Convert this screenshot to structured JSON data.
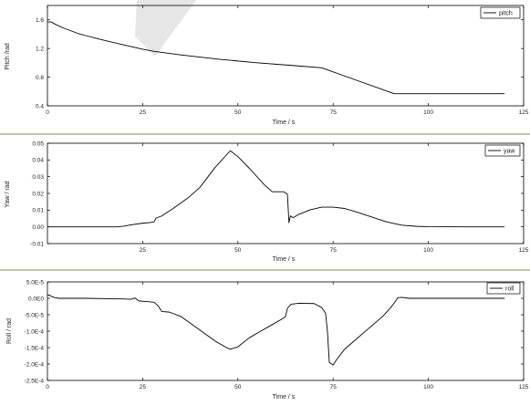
{
  "watermark": {
    "color": "#e6e6e6"
  },
  "chart_data": [
    {
      "type": "line",
      "xlabel": "Time / s",
      "ylabel": "Pitch /rad",
      "xlim": [
        0,
        125
      ],
      "ylim": [
        0.4,
        1.8
      ],
      "x_ticks": [
        0,
        25,
        50,
        75,
        100,
        125
      ],
      "x_tick_labels": [
        "0",
        "25",
        "50",
        "75",
        "100",
        "125"
      ],
      "y_ticks": [
        0.4,
        0.8,
        1.2,
        1.6
      ],
      "y_tick_labels": [
        "0.4",
        "0.8",
        "1.2",
        "1.6"
      ],
      "grid": false,
      "legend_position": "top-right",
      "series": [
        {
          "name": "pitch",
          "color": "#000000",
          "x": [
            0,
            1,
            2,
            4,
            6,
            8,
            10,
            13,
            16,
            20,
            25,
            28,
            35,
            45,
            55,
            65,
            72,
            91,
            92,
            120
          ],
          "y": [
            1.57,
            1.57,
            1.54,
            1.49,
            1.45,
            1.41,
            1.38,
            1.34,
            1.3,
            1.25,
            1.19,
            1.16,
            1.11,
            1.05,
            1.0,
            0.96,
            0.93,
            0.57,
            0.57,
            0.57
          ]
        }
      ]
    },
    {
      "type": "line",
      "xlabel": "Time / s",
      "ylabel": "Yaw / rad",
      "xlim": [
        0,
        125
      ],
      "ylim": [
        -0.01,
        0.05
      ],
      "x_ticks": [
        25,
        50,
        75,
        100,
        125
      ],
      "x_tick_labels": [
        "25",
        "50",
        "75",
        "100",
        "125"
      ],
      "y_ticks": [
        -0.01,
        0.0,
        0.01,
        0.02,
        0.03,
        0.04,
        0.05
      ],
      "y_tick_labels": [
        "-0.01",
        "0.00",
        "0.01",
        "0.02",
        "0.03",
        "0.04",
        "0.05"
      ],
      "grid": false,
      "legend_position": "top-right",
      "series": [
        {
          "name": "yaw",
          "color": "#000000",
          "x": [
            0,
            10,
            18,
            20,
            22,
            25,
            27,
            28,
            28.5,
            30,
            33,
            37,
            40,
            44,
            48,
            50,
            53,
            57,
            59,
            62,
            63,
            63.4,
            63.8,
            64.5,
            66,
            69,
            72,
            75,
            78,
            81,
            85,
            89,
            93,
            97,
            100,
            110,
            120
          ],
          "y": [
            0,
            0,
            0,
            0.0004,
            0.0012,
            0.0022,
            0.0026,
            0.003,
            0.0052,
            0.0065,
            0.011,
            0.0175,
            0.0235,
            0.0355,
            0.0455,
            0.042,
            0.035,
            0.025,
            0.021,
            0.021,
            0.0195,
            0.0025,
            0.0065,
            0.0055,
            0.0075,
            0.0102,
            0.0118,
            0.0118,
            0.011,
            0.009,
            0.006,
            0.003,
            0.001,
            0.0003,
            0.0001,
            0,
            0
          ]
        }
      ]
    },
    {
      "type": "line",
      "xlabel": "Time / s",
      "ylabel": "Roll / rad",
      "xlim": [
        0,
        125
      ],
      "ylim": [
        -0.00025,
        5e-05
      ],
      "x_ticks": [
        0,
        25,
        50,
        75,
        100,
        125
      ],
      "x_tick_labels": [
        "0",
        "25",
        "50",
        "75",
        "100",
        "125"
      ],
      "y_ticks": [
        -0.00025,
        -0.0002,
        -0.00015,
        -0.0001,
        -5e-05,
        0,
        5e-05
      ],
      "y_tick_labels": [
        "-2.5E-4",
        "-2.0E-4",
        "-1.5E-4",
        "-1.0E-4",
        "-5.0E-5",
        "0.0E0",
        "5.0E-5"
      ],
      "grid": false,
      "legend_position": "top-right",
      "series": [
        {
          "name": "roll",
          "color": "#000000",
          "x": [
            0,
            0.5,
            1,
            2,
            3,
            10,
            20,
            22,
            23,
            24,
            26,
            28,
            29,
            30,
            32,
            35,
            38,
            41,
            44,
            47,
            48,
            50,
            53,
            56,
            59,
            62,
            62.5,
            63,
            64,
            66,
            70,
            72,
            73,
            73.5,
            74,
            75,
            76,
            78,
            80,
            84,
            88,
            90,
            91,
            92,
            93,
            95,
            100,
            110,
            120
          ],
          "y": [
            1e-05,
            1e-05,
            6e-06,
            2e-06,
            0,
            0,
            -2e-06,
            -3e-06,
            1e-06,
            -8e-06,
            -1e-05,
            -1.2e-05,
            -2.2e-05,
            -4e-05,
            -4.2e-05,
            -5.5e-05,
            -8e-05,
            -0.000105,
            -0.00013,
            -0.00015,
            -0.000155,
            -0.000148,
            -0.00012,
            -0.0001,
            -8e-05,
            -6e-05,
            -5.5e-05,
            -3e-05,
            -1.8e-05,
            -1.5e-05,
            -1.6e-05,
            -2.8e-05,
            -4.5e-05,
            -0.0001,
            -0.000195,
            -0.000203,
            -0.000185,
            -0.000155,
            -0.000135,
            -9.5e-05,
            -5.5e-05,
            -3e-05,
            -1.5e-05,
            2e-06,
            3e-06,
            0,
            0,
            0,
            0
          ]
        }
      ]
    }
  ]
}
